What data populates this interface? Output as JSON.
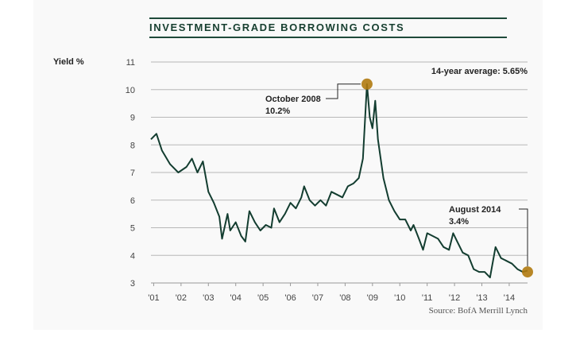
{
  "chart_data": {
    "type": "line",
    "title": "INVESTMENT-GRADE BORROWING COSTS",
    "ylabel": "Yield %",
    "xlabel": "",
    "source": "Source: BofA Merrill Lynch",
    "ylim": [
      3,
      11
    ],
    "xlim": [
      2000.9,
      2014.67
    ],
    "grid": true,
    "yticks": [
      3,
      4,
      5,
      6,
      7,
      8,
      9,
      10,
      11
    ],
    "ytick_labels": [
      "3",
      "4",
      "5",
      "6",
      "7",
      "8",
      "9",
      "10",
      "11"
    ],
    "xticks": [
      2001,
      2002,
      2003,
      2004,
      2005,
      2006,
      2007,
      2008,
      2009,
      2010,
      2011,
      2012,
      2013,
      2014
    ],
    "xtick_labels": [
      "'01",
      "'02",
      "'03",
      "'04",
      "'05",
      "'06",
      "'07",
      "'08",
      "'09",
      "'10",
      "'11",
      "'12",
      "'13",
      "'14"
    ],
    "colors": {
      "line": "#133d30",
      "marker": "#b07a10",
      "grid": "#b8b8b8"
    },
    "series": [
      {
        "name": "Yield",
        "x": [
          2000.9,
          2001.0,
          2001.1,
          2001.3,
          2001.6,
          2001.9,
          2002.2,
          2002.4,
          2002.6,
          2002.8,
          2003.0,
          2003.2,
          2003.4,
          2003.5,
          2003.7,
          2003.8,
          2004.0,
          2004.2,
          2004.35,
          2004.5,
          2004.7,
          2004.9,
          2005.1,
          2005.3,
          2005.4,
          2005.6,
          2005.8,
          2006.0,
          2006.2,
          2006.4,
          2006.5,
          2006.7,
          2006.9,
          2007.1,
          2007.3,
          2007.5,
          2007.7,
          2007.9,
          2008.1,
          2008.3,
          2008.5,
          2008.65,
          2008.8,
          2008.9,
          2009.0,
          2009.1,
          2009.2,
          2009.4,
          2009.6,
          2009.8,
          2010.0,
          2010.2,
          2010.4,
          2010.5,
          2010.7,
          2010.85,
          2011.0,
          2011.2,
          2011.4,
          2011.6,
          2011.8,
          2011.95,
          2012.1,
          2012.3,
          2012.5,
          2012.7,
          2012.9,
          2013.1,
          2013.3,
          2013.5,
          2013.7,
          2013.9,
          2014.1,
          2014.3,
          2014.5,
          2014.67
        ],
        "y": [
          8.2,
          8.3,
          8.4,
          7.8,
          7.3,
          7.0,
          7.2,
          7.5,
          7.0,
          7.4,
          6.3,
          5.9,
          5.4,
          4.6,
          5.5,
          4.9,
          5.2,
          4.7,
          4.5,
          5.6,
          5.2,
          4.9,
          5.1,
          5.0,
          5.7,
          5.2,
          5.5,
          5.9,
          5.7,
          6.1,
          6.5,
          6.0,
          5.8,
          6.0,
          5.8,
          6.3,
          6.2,
          6.1,
          6.5,
          6.6,
          6.8,
          7.5,
          10.2,
          9.0,
          8.6,
          9.6,
          8.2,
          6.8,
          6.0,
          5.6,
          5.3,
          5.3,
          4.9,
          5.1,
          4.6,
          4.2,
          4.8,
          4.7,
          4.6,
          4.3,
          4.2,
          4.8,
          4.5,
          4.1,
          4.0,
          3.5,
          3.4,
          3.4,
          3.2,
          4.3,
          3.9,
          3.8,
          3.7,
          3.5,
          3.4,
          3.45
        ]
      }
    ],
    "annotations": [
      {
        "label": "October 2008",
        "value": "10.2%",
        "x": 2008.8,
        "y": 10.2
      },
      {
        "label": "August 2014",
        "value": "3.4%",
        "x": 2014.67,
        "y": 3.4
      },
      {
        "label": "14-year average: 5.65%"
      }
    ]
  }
}
